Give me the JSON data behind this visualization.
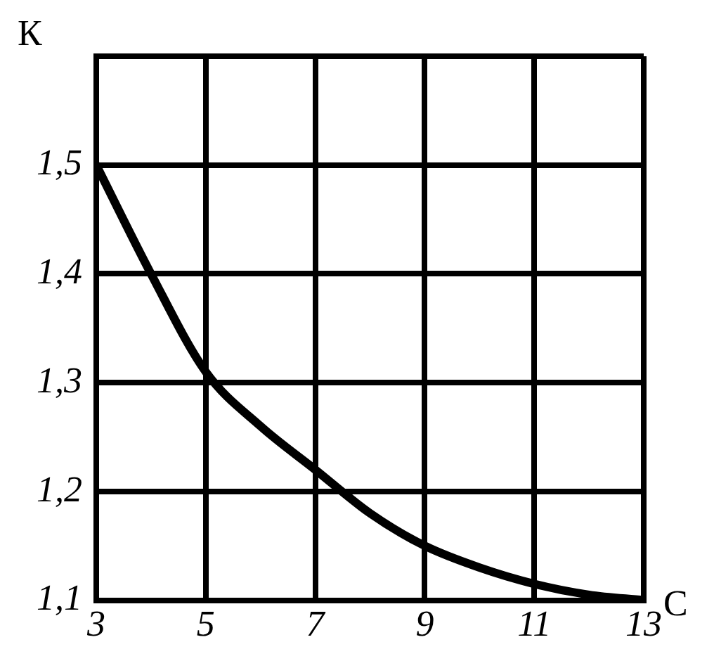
{
  "chart_data": {
    "type": "line",
    "xlabel": "С",
    "ylabel": "К",
    "x": [
      3,
      4,
      5,
      6,
      7,
      8,
      9,
      10,
      11,
      12,
      13
    ],
    "series": [
      {
        "color": "#000000",
        "values": [
          1.5,
          1.4,
          1.31,
          1.26,
          1.22,
          1.18,
          1.15,
          1.13,
          1.115,
          1.105,
          1.1
        ]
      }
    ],
    "xlim": [
      3,
      13
    ],
    "xticks": [
      3,
      5,
      7,
      9,
      11,
      13
    ],
    "ylim": [
      1.1,
      1.6
    ],
    "yticks": [
      {
        "value": 1.1,
        "label": "1,1"
      },
      {
        "value": 1.2,
        "label": "1,2"
      },
      {
        "value": 1.3,
        "label": "1,3"
      },
      {
        "value": 1.4,
        "label": "1,4"
      },
      {
        "value": 1.5,
        "label": "1,5"
      },
      {
        "value": 1.6,
        "label": null
      }
    ],
    "grid": true,
    "legend": false,
    "marker": "none",
    "line_style": "solid"
  }
}
